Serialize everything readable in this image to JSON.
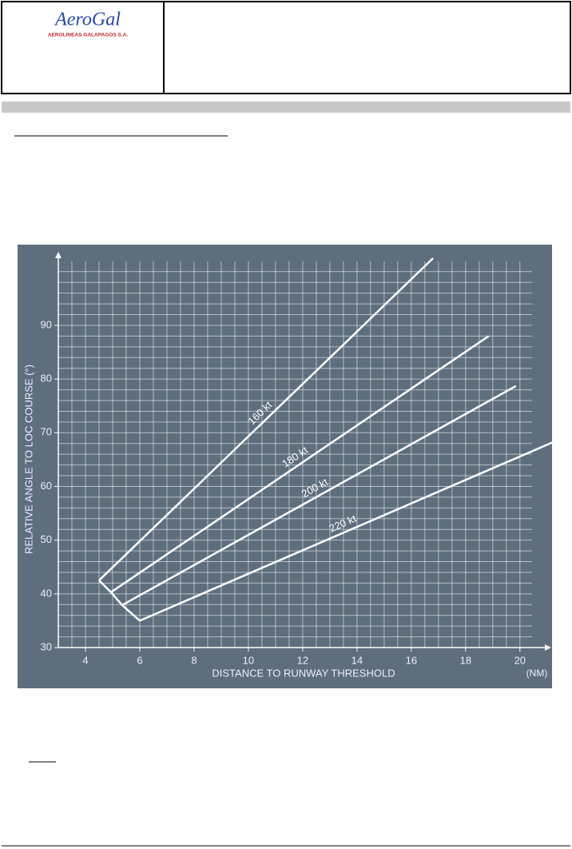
{
  "header": {
    "logo": "AeroGal",
    "tagline": "AEROLINEAS GALAPAGOS S.A."
  },
  "chart_data": {
    "type": "line",
    "xlabel": "DISTANCE TO RUNWAY THRESHOLD",
    "xunit": "(NM)",
    "ylabel": "RELATIVE ANGLE TO LOC COURSE (°)",
    "series": [
      {
        "name": "160 kt",
        "color": "#ffffff",
        "x": [
          4.5,
          16.8
        ],
        "values": [
          42.5,
          102.5
        ]
      },
      {
        "name": "180 kt",
        "color": "#ffffff",
        "x": [
          4.94,
          18.85
        ],
        "values": [
          40.3,
          88
        ]
      },
      {
        "name": "200 kt",
        "color": "#ffffff",
        "x": [
          5.35,
          19.85
        ],
        "values": [
          37.9,
          78.7
        ]
      },
      {
        "name": "220 kt",
        "color": "#ffffff",
        "x": [
          6,
          21.2
        ],
        "values": [
          35,
          68.2
        ]
      }
    ],
    "xlim": [
      3,
      20.8
    ],
    "ylim": [
      30,
      102.5
    ],
    "xticks": [
      4,
      6,
      8,
      10,
      12,
      14,
      16,
      18,
      20
    ],
    "yticks": [
      30,
      40,
      50,
      60,
      70,
      80,
      90
    ],
    "grid": true,
    "xminor": 0.5,
    "yminor": 2
  }
}
